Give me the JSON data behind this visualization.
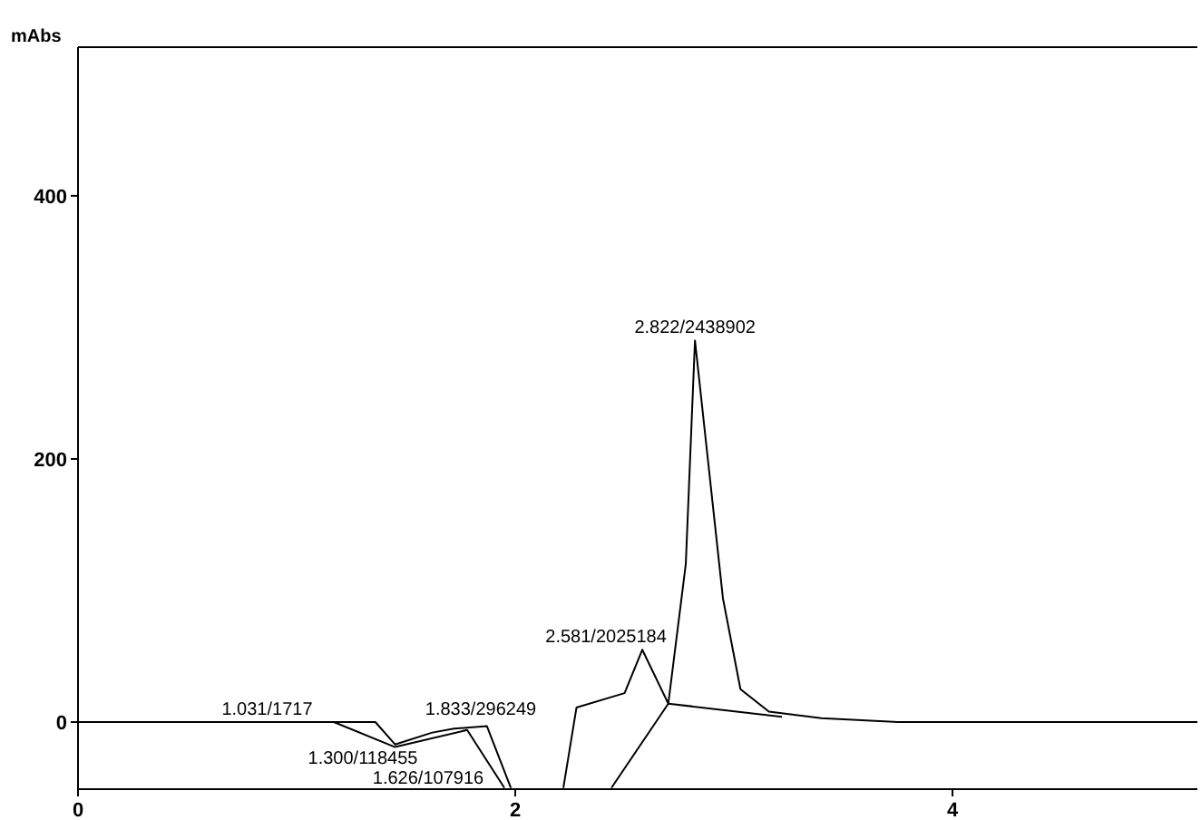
{
  "chart_data": {
    "type": "line",
    "ylabel": "mAbs",
    "xlim": [
      0,
      5.12
    ],
    "ylim": [
      -51,
      513
    ],
    "xticks": [
      0,
      2,
      4
    ],
    "yticks": [
      0,
      200,
      400
    ],
    "grid": false,
    "marker": "none",
    "line_style": "solid",
    "series": [
      {
        "color": "#000000",
        "x": [
          0,
          1.031,
          1.36,
          1.45,
          1.62,
          1.72,
          1.87,
          1.98,
          2.1,
          2.22,
          2.28,
          2.5,
          2.581,
          2.7,
          2.78,
          2.822,
          2.95,
          3.03,
          3.16,
          3.4,
          3.75,
          5.12,
          null,
          1.17,
          1.45,
          1.78,
          1.95,
          2.2,
          2.44,
          2.7,
          3.22
        ],
        "values": [
          0,
          0,
          0,
          -17,
          -8,
          -5,
          -3,
          -50,
          null,
          -50,
          11,
          22,
          55,
          14,
          120,
          290,
          94,
          25,
          8,
          3,
          0,
          0,
          null,
          0,
          -19,
          -6,
          -50,
          null,
          -50,
          14,
          4
        ]
      }
    ],
    "annotations": [
      {
        "text": "1.031/1717",
        "x": 1.031,
        "y": 0
      },
      "1.300/118455",
      "1.626/107916",
      "1.833/296249",
      {
        "text": "2.581/2025184",
        "x": 2.581,
        "y": 55
      },
      {
        "text": "2.822/2438902",
        "x": 2.822,
        "y": 290
      }
    ]
  }
}
